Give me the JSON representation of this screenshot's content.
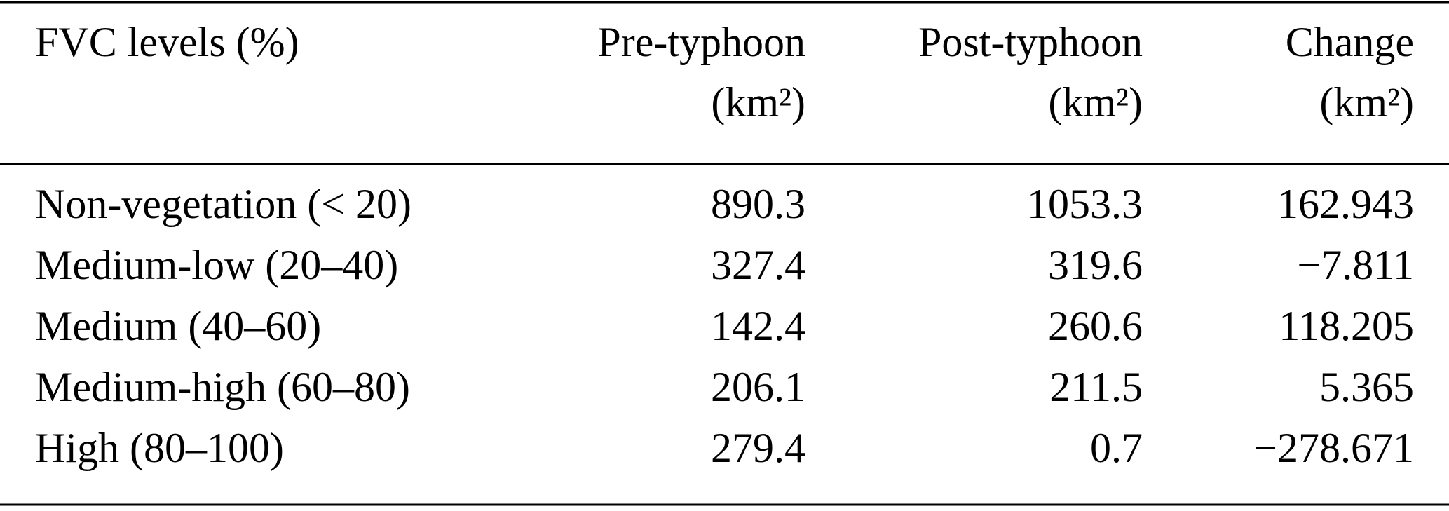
{
  "table": {
    "header": [
      [
        "FVC levels (%)"
      ],
      [
        "Pre-typhoon",
        "(km²)"
      ],
      [
        "Post-typhoon",
        "(km²)"
      ],
      [
        "Change",
        "(km²)"
      ]
    ],
    "rows": [
      [
        "Non-vegetation (< 20)",
        "890.3",
        "1053.3",
        "162.943"
      ],
      [
        "Medium-low (20–40)",
        "327.4",
        "319.6",
        "−7.811"
      ],
      [
        "Medium (40–60)",
        "142.4",
        "260.6",
        "118.205"
      ],
      [
        "Medium-high (60–80)",
        "206.1",
        "211.5",
        "5.365"
      ],
      [
        "High (80–100)",
        "279.4",
        "0.7",
        "−278.671"
      ]
    ]
  }
}
